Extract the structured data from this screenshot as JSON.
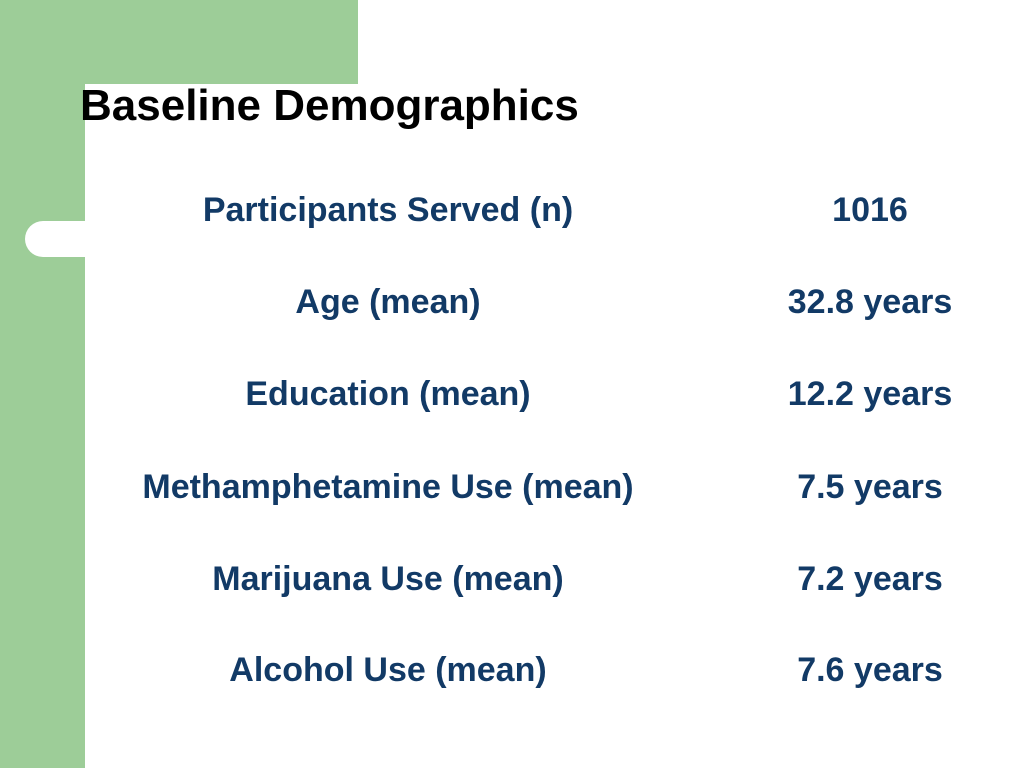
{
  "slide": {
    "title": "Baseline Demographics",
    "colors": {
      "accent_green": "#9dcd98",
      "text_navy": "#123a66",
      "title_black": "#000000"
    },
    "rows": [
      {
        "label": "Participants Served (n)",
        "value": "1016"
      },
      {
        "label": "Age (mean)",
        "value": "32.8 years"
      },
      {
        "label": "Education (mean)",
        "value": "12.2 years"
      },
      {
        "label": "Methamphetamine Use (mean)",
        "value": "7.5 years"
      },
      {
        "label": "Marijuana Use (mean)",
        "value": "7.2 years"
      },
      {
        "label": "Alcohol Use (mean)",
        "value": "7.6 years"
      }
    ]
  }
}
